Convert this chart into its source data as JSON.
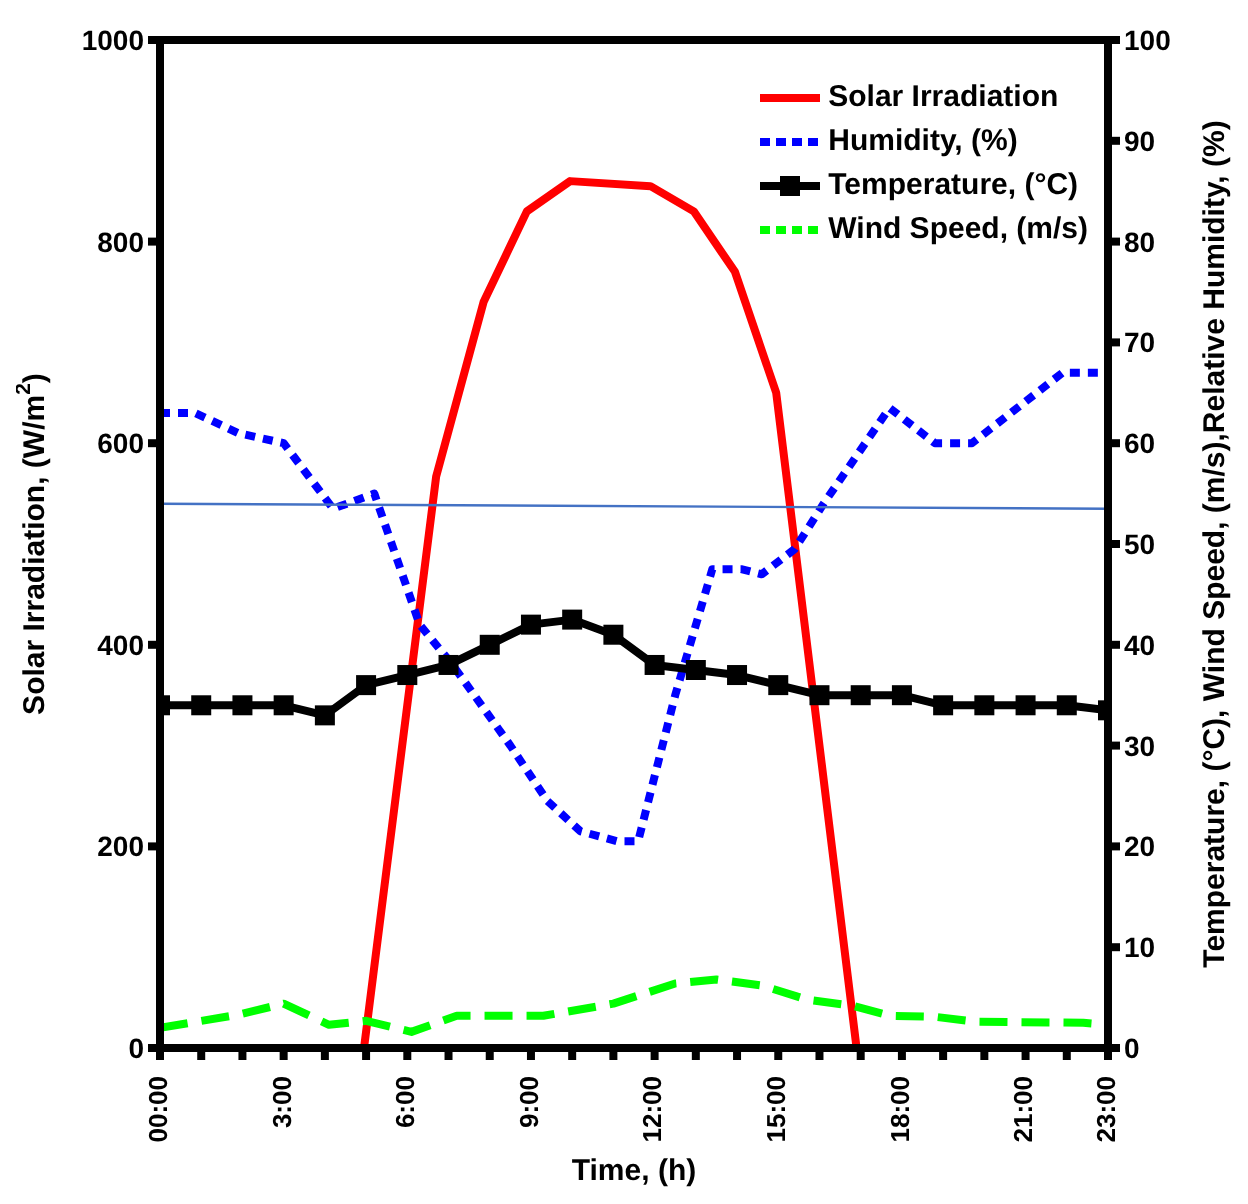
{
  "chart_data": {
    "type": "line",
    "xlabel": "Time, (h)",
    "ylabel": "Solar Irradiation, (W/m$^{2}$)",
    "y2label": "Temperature, (°C), Wind Speed, (m/s),Relative Humidity, (%)",
    "xlim": [
      0,
      23
    ],
    "xticks": [
      {
        "value": 0,
        "label": "00:00"
      },
      {
        "value": 1,
        "label": null
      },
      {
        "value": 2,
        "label": null
      },
      {
        "value": 3,
        "label": "3:00"
      },
      {
        "value": 4,
        "label": null
      },
      {
        "value": 5,
        "label": null
      },
      {
        "value": 6,
        "label": "6:00"
      },
      {
        "value": 7,
        "label": null
      },
      {
        "value": 8,
        "label": null
      },
      {
        "value": 9,
        "label": "9:00"
      },
      {
        "value": 10,
        "label": null
      },
      {
        "value": 11,
        "label": null
      },
      {
        "value": 12,
        "label": "12:00"
      },
      {
        "value": 13,
        "label": null
      },
      {
        "value": 14,
        "label": null
      },
      {
        "value": 15,
        "label": "15:00"
      },
      {
        "value": 16,
        "label": null
      },
      {
        "value": 17,
        "label": null
      },
      {
        "value": 18,
        "label": "18:00"
      },
      {
        "value": 19,
        "label": null
      },
      {
        "value": 20,
        "label": null
      },
      {
        "value": 21,
        "label": "21:00"
      },
      {
        "value": 22,
        "label": null
      },
      {
        "value": 23,
        "label": "23:00"
      }
    ],
    "ylim": [
      0,
      1000
    ],
    "yticks": [
      0,
      200,
      400,
      600,
      800,
      1000
    ],
    "y2lim": [
      0,
      100
    ],
    "y2ticks": [
      0,
      10,
      20,
      30,
      40,
      50,
      60,
      70,
      80,
      90,
      100
    ],
    "grid": false,
    "legend": "top right",
    "series": [
      {
        "name": "Solar Irradiation",
        "color": "#ff0000",
        "line_style": "solid",
        "marker": "none",
        "x": [
          0,
          4.95,
          6.7,
          7.85,
          8.9,
          9.95,
          11.9,
          12.95,
          13.95,
          14.95,
          16.9,
          23
        ],
        "values": [
          0,
          0,
          567,
          740,
          830,
          860,
          855,
          830,
          770,
          650,
          0,
          0
        ]
      },
      {
        "name": "Humidity, (%)",
        "color": "#0000ff",
        "axis": "y2",
        "line_style": "dotted",
        "marker": "none",
        "x": [
          0,
          0.85,
          1.9,
          3,
          4.2,
          5.2,
          6.3,
          7.1,
          8.5,
          9.4,
          10.2,
          11.1,
          11.6,
          12.5,
          13.4,
          14.1,
          14.6,
          15.4,
          16.1,
          17.7,
          18.8,
          19.7,
          20.8,
          21.9,
          23
        ],
        "values": [
          63,
          63,
          61,
          60,
          53.5,
          55,
          42,
          38,
          30,
          24.5,
          21.5,
          20.5,
          20.5,
          35,
          47.5,
          47.5,
          47,
          49.5,
          54,
          63.5,
          60,
          60,
          63.5,
          67,
          67
        ]
      },
      {
        "name": "Temperature, (°C)",
        "color": "#000000",
        "axis": "y2",
        "line_style": "solid",
        "marker": "square",
        "x": [
          0,
          1,
          2,
          3,
          4,
          5,
          6,
          7,
          8,
          9,
          10,
          11,
          12,
          13,
          14,
          15,
          16,
          17,
          18,
          19,
          20,
          21,
          22,
          23
        ],
        "values": [
          34,
          34,
          34,
          34,
          33,
          36,
          37,
          38,
          40,
          42,
          42.5,
          41,
          38,
          37.5,
          37,
          36,
          35,
          35,
          35,
          34,
          34,
          34,
          34,
          33.5
        ]
      },
      {
        "name": "Wind Speed, (m/s)",
        "color": "#00ff00",
        "axis": "y2",
        "line_style": "dashed",
        "marker": "none",
        "x": [
          0,
          1.9,
          3,
          4.1,
          5,
          6.1,
          7.2,
          9.3,
          11,
          12.5,
          13.5,
          14.6,
          15.7,
          16.8,
          17.7,
          18.8,
          19.8,
          22.4,
          23
        ],
        "values": [
          2,
          3.3,
          4.4,
          2.3,
          2.7,
          1.6,
          3.2,
          3.2,
          4.4,
          6.4,
          6.8,
          6.2,
          4.8,
          4.2,
          3.2,
          3.1,
          2.6,
          2.5,
          2.3
        ]
      },
      {
        "color": "#4472c4",
        "line_style": "solid",
        "marker": "none",
        "x": [
          0,
          23
        ],
        "values": [
          540,
          535
        ]
      }
    ]
  }
}
